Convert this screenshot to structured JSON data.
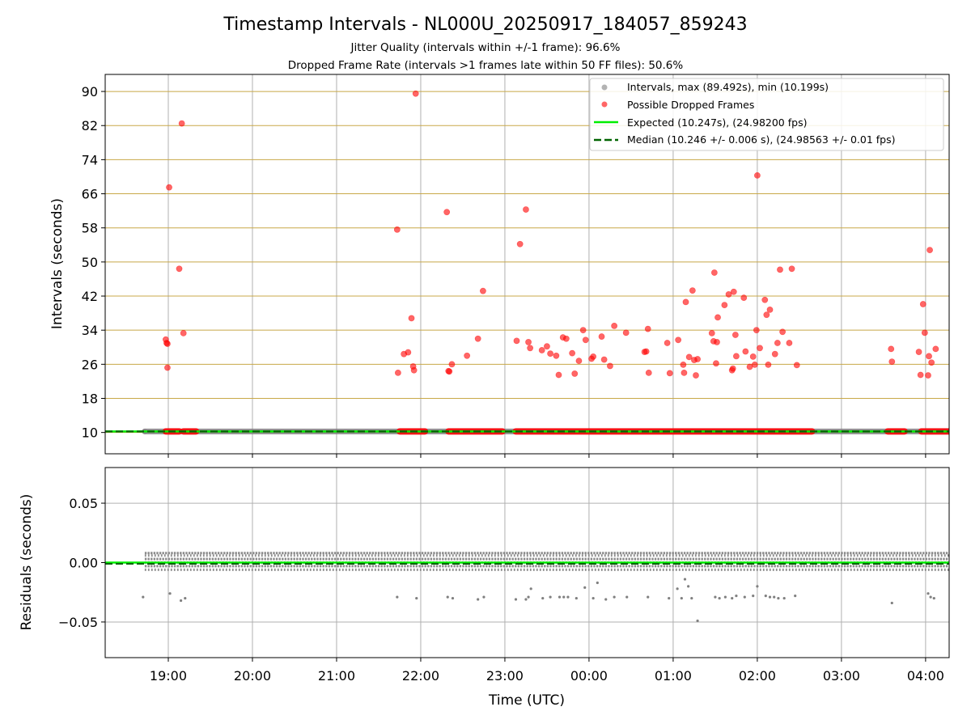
{
  "title": "Timestamp Intervals - NL000U_20250917_184057_859243",
  "subtitle_1": "Jitter Quality (intervals within +/-1 frame): 96.6%",
  "subtitle_2": "Dropped Frame Rate (intervals >1 frames late within 50 FF files): 50.6%",
  "colors": {
    "intervals": "#808080",
    "dropped": "#ff0000",
    "expected": "#00ee00",
    "median": "#006400",
    "hgrid_top": "#c8a848",
    "grid": "#b0b0b0"
  },
  "chart_data": [
    {
      "type": "scatter",
      "name": "intervals-panel",
      "ylabel": "Intervals (seconds)",
      "ylim": [
        5,
        94
      ],
      "yticks": [
        "10",
        "18",
        "26",
        "34",
        "42",
        "50",
        "58",
        "66",
        "74",
        "82",
        "90"
      ],
      "xlim_hours": [
        18.25,
        28.28
      ],
      "grid": true,
      "legend_position": "upper right",
      "legend": [
        "Intervals, max (89.492s), min (10.199s)",
        "Possible Dropped Frames",
        "Expected (10.247s), (24.98200 fps)",
        "Median (10.246 +/- 0.006 s), (24.98563 +/- 0.01 fps)"
      ],
      "expected_line": 10.247,
      "median_line": 10.246,
      "baseline_band_hours": [
        [
          18.72,
          28.28
        ]
      ],
      "dropped_baseline_hours": [
        [
          18.97,
          19.13
        ],
        [
          19.18,
          19.33
        ],
        [
          21.75,
          22.05
        ],
        [
          22.33,
          22.97
        ],
        [
          23.13,
          26.65
        ],
        [
          27.55,
          27.75
        ],
        [
          27.95,
          28.28
        ]
      ],
      "dropped_points": [
        {
          "t": 18.97,
          "y": 31.8
        },
        {
          "t": 18.98,
          "y": 31.0
        },
        {
          "t": 18.99,
          "y": 30.8
        },
        {
          "t": 18.99,
          "y": 25.2
        },
        {
          "t": 19.01,
          "y": 67.5
        },
        {
          "t": 19.13,
          "y": 48.4
        },
        {
          "t": 19.16,
          "y": 82.5
        },
        {
          "t": 19.18,
          "y": 33.3
        },
        {
          "t": 21.72,
          "y": 57.6
        },
        {
          "t": 21.73,
          "y": 24.0
        },
        {
          "t": 21.8,
          "y": 28.4
        },
        {
          "t": 21.85,
          "y": 28.8
        },
        {
          "t": 21.89,
          "y": 36.8
        },
        {
          "t": 21.91,
          "y": 25.5
        },
        {
          "t": 21.92,
          "y": 24.6
        },
        {
          "t": 21.94,
          "y": 89.5
        },
        {
          "t": 22.31,
          "y": 61.7
        },
        {
          "t": 22.33,
          "y": 24.4
        },
        {
          "t": 22.34,
          "y": 24.3
        },
        {
          "t": 22.37,
          "y": 26.0
        },
        {
          "t": 22.55,
          "y": 28.0
        },
        {
          "t": 22.68,
          "y": 32.0
        },
        {
          "t": 22.74,
          "y": 43.2
        },
        {
          "t": 23.14,
          "y": 31.5
        },
        {
          "t": 23.18,
          "y": 54.2
        },
        {
          "t": 23.25,
          "y": 62.3
        },
        {
          "t": 23.28,
          "y": 31.2
        },
        {
          "t": 23.3,
          "y": 29.8
        },
        {
          "t": 23.44,
          "y": 29.3
        },
        {
          "t": 23.5,
          "y": 30.2
        },
        {
          "t": 23.54,
          "y": 28.5
        },
        {
          "t": 23.61,
          "y": 28.0
        },
        {
          "t": 23.64,
          "y": 23.5
        },
        {
          "t": 23.69,
          "y": 32.3
        },
        {
          "t": 23.73,
          "y": 32.0
        },
        {
          "t": 23.8,
          "y": 28.6
        },
        {
          "t": 23.83,
          "y": 23.8
        },
        {
          "t": 23.88,
          "y": 26.8
        },
        {
          "t": 23.93,
          "y": 34.0
        },
        {
          "t": 23.96,
          "y": 31.7
        },
        {
          "t": 24.03,
          "y": 27.3
        },
        {
          "t": 24.05,
          "y": 27.8
        },
        {
          "t": 24.15,
          "y": 32.5
        },
        {
          "t": 24.18,
          "y": 27.1
        },
        {
          "t": 24.25,
          "y": 25.6
        },
        {
          "t": 24.3,
          "y": 35.0
        },
        {
          "t": 24.44,
          "y": 33.4
        },
        {
          "t": 24.66,
          "y": 28.9
        },
        {
          "t": 24.68,
          "y": 29.0
        },
        {
          "t": 24.7,
          "y": 34.3
        },
        {
          "t": 24.71,
          "y": 24.0
        },
        {
          "t": 24.93,
          "y": 31.0
        },
        {
          "t": 24.96,
          "y": 23.9
        },
        {
          "t": 25.06,
          "y": 31.7
        },
        {
          "t": 25.12,
          "y": 25.9
        },
        {
          "t": 25.13,
          "y": 24.0
        },
        {
          "t": 25.15,
          "y": 40.6
        },
        {
          "t": 25.19,
          "y": 27.7
        },
        {
          "t": 25.23,
          "y": 43.3
        },
        {
          "t": 25.25,
          "y": 27.0
        },
        {
          "t": 25.27,
          "y": 23.4
        },
        {
          "t": 25.29,
          "y": 27.2
        },
        {
          "t": 25.46,
          "y": 33.3
        },
        {
          "t": 25.48,
          "y": 31.4
        },
        {
          "t": 25.49,
          "y": 47.5
        },
        {
          "t": 25.51,
          "y": 26.2
        },
        {
          "t": 25.52,
          "y": 31.2
        },
        {
          "t": 25.53,
          "y": 37.0
        },
        {
          "t": 25.61,
          "y": 39.9
        },
        {
          "t": 25.66,
          "y": 42.4
        },
        {
          "t": 25.7,
          "y": 24.6
        },
        {
          "t": 25.71,
          "y": 25.0
        },
        {
          "t": 25.72,
          "y": 43.0
        },
        {
          "t": 25.74,
          "y": 32.9
        },
        {
          "t": 25.75,
          "y": 27.9
        },
        {
          "t": 25.84,
          "y": 41.6
        },
        {
          "t": 25.86,
          "y": 29.0
        },
        {
          "t": 25.91,
          "y": 25.4
        },
        {
          "t": 25.95,
          "y": 27.8
        },
        {
          "t": 25.97,
          "y": 25.9
        },
        {
          "t": 25.99,
          "y": 34.0
        },
        {
          "t": 26.0,
          "y": 70.3
        },
        {
          "t": 26.03,
          "y": 29.8
        },
        {
          "t": 26.09,
          "y": 41.1
        },
        {
          "t": 26.11,
          "y": 37.6
        },
        {
          "t": 26.13,
          "y": 25.9
        },
        {
          "t": 26.15,
          "y": 38.8
        },
        {
          "t": 26.21,
          "y": 28.4
        },
        {
          "t": 26.24,
          "y": 31.0
        },
        {
          "t": 26.27,
          "y": 48.2
        },
        {
          "t": 26.3,
          "y": 33.6
        },
        {
          "t": 26.38,
          "y": 31.0
        },
        {
          "t": 26.41,
          "y": 48.4
        },
        {
          "t": 26.47,
          "y": 25.8
        },
        {
          "t": 27.59,
          "y": 29.6
        },
        {
          "t": 27.6,
          "y": 26.6
        },
        {
          "t": 27.92,
          "y": 28.9
        },
        {
          "t": 27.94,
          "y": 23.5
        },
        {
          "t": 27.97,
          "y": 40.1
        },
        {
          "t": 27.99,
          "y": 33.4
        },
        {
          "t": 28.03,
          "y": 23.4
        },
        {
          "t": 28.04,
          "y": 27.9
        },
        {
          "t": 28.05,
          "y": 52.8
        },
        {
          "t": 28.07,
          "y": 26.4
        },
        {
          "t": 28.12,
          "y": 29.6
        }
      ],
      "interval_points_shown": [
        {
          "t": 18.72,
          "y": 10.25
        }
      ]
    },
    {
      "type": "scatter",
      "name": "residuals-panel",
      "xlabel": "Time (UTC)",
      "ylabel": "Residuals (seconds)",
      "ylim": [
        -0.08,
        0.08
      ],
      "yticks": [
        "0.05",
        "0.00",
        "−0.05"
      ],
      "ytick_values": [
        0.05,
        0.0,
        -0.05
      ],
      "xticks": [
        "19:00",
        "20:00",
        "21:00",
        "22:00",
        "23:00",
        "00:00",
        "01:00",
        "02:00",
        "03:00",
        "04:00"
      ],
      "xtick_hours": [
        19,
        20,
        21,
        22,
        23,
        24,
        25,
        26,
        27,
        28
      ],
      "grid": true,
      "residual_band_values": [
        0.008,
        0.006,
        0.003,
        0.0,
        -0.003,
        -0.006
      ],
      "residual_band_hours": [
        18.72,
        28.28
      ],
      "outlier_points": [
        {
          "t": 18.7,
          "y": -0.029
        },
        {
          "t": 19.02,
          "y": -0.026
        },
        {
          "t": 19.15,
          "y": -0.032
        },
        {
          "t": 19.2,
          "y": -0.03
        },
        {
          "t": 21.72,
          "y": -0.029
        },
        {
          "t": 21.95,
          "y": -0.03
        },
        {
          "t": 22.32,
          "y": -0.029
        },
        {
          "t": 22.38,
          "y": -0.03
        },
        {
          "t": 22.68,
          "y": -0.031
        },
        {
          "t": 22.75,
          "y": -0.029
        },
        {
          "t": 23.13,
          "y": -0.031
        },
        {
          "t": 23.25,
          "y": -0.031
        },
        {
          "t": 23.28,
          "y": -0.029
        },
        {
          "t": 23.31,
          "y": -0.022
        },
        {
          "t": 23.45,
          "y": -0.03
        },
        {
          "t": 23.54,
          "y": -0.029
        },
        {
          "t": 23.65,
          "y": -0.029
        },
        {
          "t": 23.7,
          "y": -0.029
        },
        {
          "t": 23.75,
          "y": -0.029
        },
        {
          "t": 23.85,
          "y": -0.03
        },
        {
          "t": 23.95,
          "y": -0.021
        },
        {
          "t": 24.05,
          "y": -0.03
        },
        {
          "t": 24.1,
          "y": -0.017
        },
        {
          "t": 24.2,
          "y": -0.031
        },
        {
          "t": 24.3,
          "y": -0.029
        },
        {
          "t": 24.45,
          "y": -0.029
        },
        {
          "t": 24.7,
          "y": -0.029
        },
        {
          "t": 24.95,
          "y": -0.03
        },
        {
          "t": 25.05,
          "y": -0.022
        },
        {
          "t": 25.1,
          "y": -0.03
        },
        {
          "t": 25.14,
          "y": -0.014
        },
        {
          "t": 25.18,
          "y": -0.02
        },
        {
          "t": 25.22,
          "y": -0.03
        },
        {
          "t": 25.29,
          "y": -0.049
        },
        {
          "t": 25.5,
          "y": -0.029
        },
        {
          "t": 25.55,
          "y": -0.03
        },
        {
          "t": 25.62,
          "y": -0.029
        },
        {
          "t": 25.7,
          "y": -0.03
        },
        {
          "t": 25.75,
          "y": -0.028
        },
        {
          "t": 25.85,
          "y": -0.029
        },
        {
          "t": 25.95,
          "y": -0.028
        },
        {
          "t": 26.0,
          "y": -0.02
        },
        {
          "t": 26.1,
          "y": -0.028
        },
        {
          "t": 26.15,
          "y": -0.029
        },
        {
          "t": 26.2,
          "y": -0.029
        },
        {
          "t": 26.25,
          "y": -0.03
        },
        {
          "t": 26.32,
          "y": -0.03
        },
        {
          "t": 26.45,
          "y": -0.028
        },
        {
          "t": 27.6,
          "y": -0.034
        },
        {
          "t": 28.03,
          "y": -0.026
        },
        {
          "t": 28.06,
          "y": -0.029
        },
        {
          "t": 28.1,
          "y": -0.03
        }
      ]
    }
  ]
}
